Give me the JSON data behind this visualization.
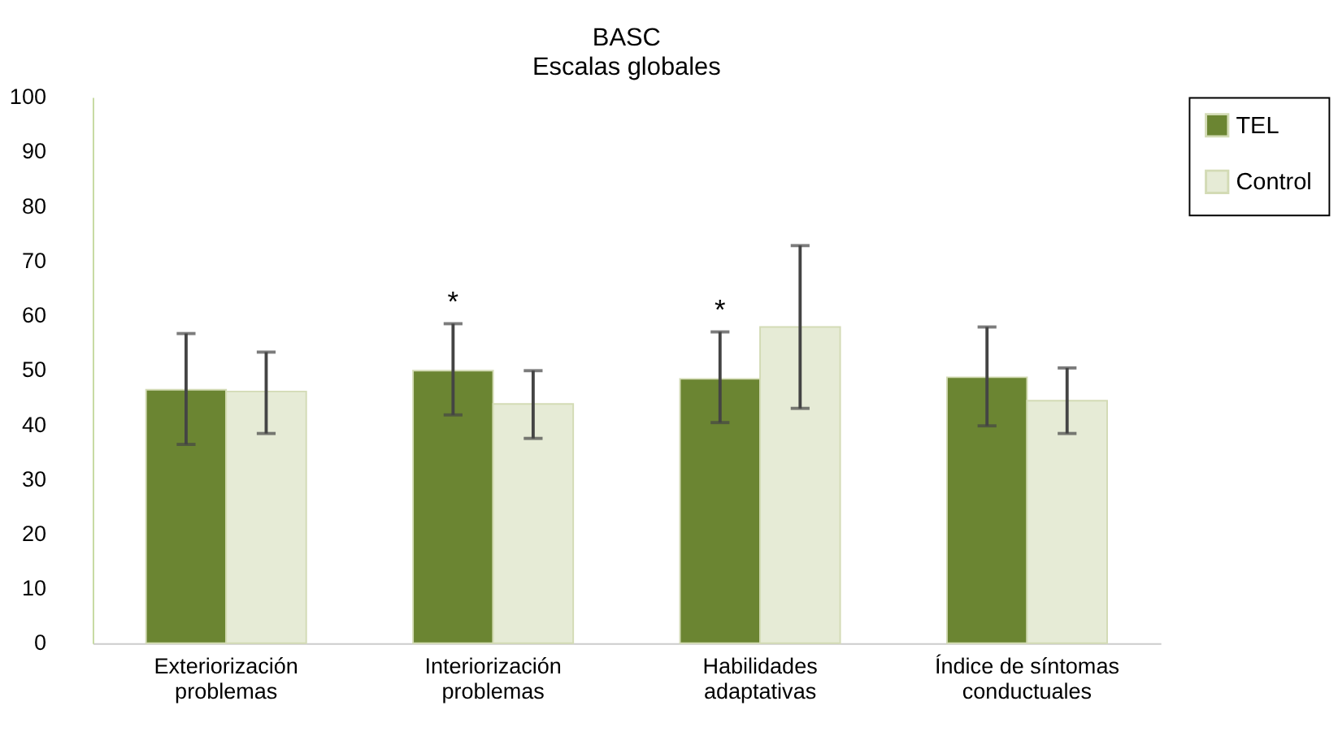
{
  "chart_data": {
    "type": "bar",
    "title": "BASC",
    "subtitle": "Escalas globales",
    "categories": [
      "Exteriorización problemas",
      "Interiorización problemas",
      "Habilidades adaptativas",
      "Índice de síntomas conductuales"
    ],
    "series": [
      {
        "name": "TEL",
        "color": "#6b8532",
        "values": [
          46.4,
          49.9,
          48.4,
          48.7
        ],
        "errors": [
          [
            36.4,
            56.7
          ],
          [
            41.8,
            58.5
          ],
          [
            40.4,
            57.0
          ],
          [
            39.8,
            57.9
          ]
        ]
      },
      {
        "name": "Control",
        "color": "#e6ebd6",
        "values": [
          46.1,
          43.8,
          57.9,
          44.4
        ],
        "errors": [
          [
            38.4,
            53.3
          ],
          [
            37.5,
            49.9
          ],
          [
            43.0,
            72.8
          ],
          [
            38.4,
            50.4
          ]
        ]
      }
    ],
    "ylim": [
      0,
      100
    ],
    "yticks": [
      0,
      10,
      20,
      30,
      40,
      50,
      60,
      70,
      80,
      90,
      100
    ],
    "grid": false,
    "legend": "right",
    "annotations": [
      "*",
      "*"
    ]
  }
}
